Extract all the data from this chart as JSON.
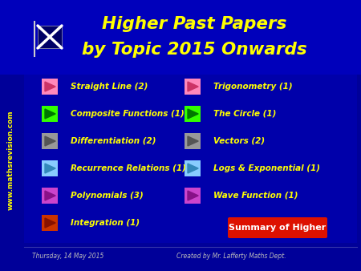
{
  "bg_color": "#000099",
  "title_bg_color": "#0000BB",
  "title_line1": "Higher Past Papers",
  "title_line2": "by Topic 2015 Onwards",
  "title_color": "#FFFF00",
  "title_fontsize": 15.5,
  "sidebar_text": "www.mathsrevision.com",
  "sidebar_color": "#FFFF00",
  "sidebar_fontsize": 6.5,
  "left_items": [
    {
      "label": "Straight Line (2)",
      "color": "#FF88BB",
      "tri_color": "#CC3366"
    },
    {
      "label": "Composite Functions (1)",
      "color": "#33FF00",
      "tri_color": "#007700"
    },
    {
      "label": "Differentiation (2)",
      "color": "#999999",
      "tri_color": "#555555"
    },
    {
      "label": "Recurrence Relations (1)",
      "color": "#88CCFF",
      "tri_color": "#3388BB"
    },
    {
      "label": "Polynomials (3)",
      "color": "#CC44CC",
      "tri_color": "#881188"
    },
    {
      "label": "Integration (1)",
      "color": "#CC3300",
      "tri_color": "#881100"
    }
  ],
  "right_items": [
    {
      "label": "Trigonometry (1)",
      "color": "#FF88BB",
      "tri_color": "#CC3366"
    },
    {
      "label": "The Circle (1)",
      "color": "#33FF00",
      "tri_color": "#007700"
    },
    {
      "label": "Vectors (2)",
      "color": "#999999",
      "tri_color": "#555555"
    },
    {
      "label": "Logs & Exponential (1)",
      "color": "#88CCFF",
      "tri_color": "#3388BB"
    },
    {
      "label": "Wave Function (1)",
      "color": "#CC44CC",
      "tri_color": "#881188"
    }
  ],
  "item_text_color": "#FFFF00",
  "item_fontsize": 7.5,
  "summary_text": "Summary of Higher",
  "summary_bg": "#DD1100",
  "summary_text_color": "#FFFFFF",
  "summary_fontsize": 8,
  "footer_left": "Thursday, 14 May 2015",
  "footer_right": "Created by Mr. Lafferty Maths Dept.",
  "footer_color": "#BBBBBB",
  "footer_fontsize": 5.5
}
